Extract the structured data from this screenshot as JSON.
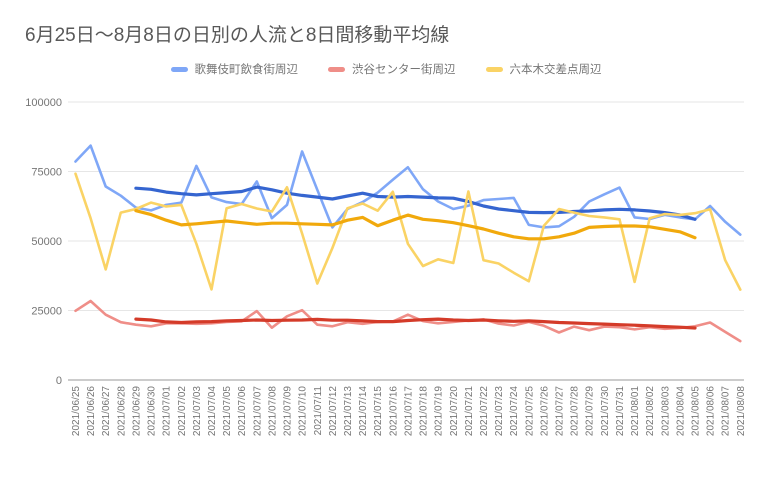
{
  "header": {
    "title": "6月25日〜8月8日の日別の人流と8日間移動平均線"
  },
  "legend": {
    "position": "top",
    "entries": [
      {
        "label": "歌舞伎町飲食街周辺",
        "color": "#7FA7F7"
      },
      {
        "label": "渋谷センター街周辺",
        "color": "#EF8E88"
      },
      {
        "label": "六本木交差点周辺",
        "color": "#FAD365"
      }
    ]
  },
  "chart_data": {
    "type": "line",
    "title": "6月25日〜8月8日の日別の人流と8日間移動平均線",
    "xlabel": "",
    "ylabel": "",
    "ylim": [
      0,
      100000
    ],
    "grid": true,
    "legend_position": "top",
    "y_ticks": [
      0,
      25000,
      50000,
      75000,
      100000
    ],
    "x_dates": [
      "2021/06/25",
      "2021/06/26",
      "2021/06/27",
      "2021/06/28",
      "2021/06/29",
      "2021/06/30",
      "2021/07/01",
      "2021/07/02",
      "2021/07/03",
      "2021/07/04",
      "2021/07/05",
      "2021/07/06",
      "2021/07/07",
      "2021/07/08",
      "2021/07/09",
      "2021/07/10",
      "2021/07/11",
      "2021/07/12",
      "2021/07/13",
      "2021/07/14",
      "2021/07/15",
      "2021/07/16",
      "2021/07/17",
      "2021/07/18",
      "2021/07/19",
      "2021/07/20",
      "2021/07/21",
      "2021/07/22",
      "2021/07/23",
      "2021/07/24",
      "2021/07/25",
      "2021/07/26",
      "2021/07/27",
      "2021/07/28",
      "2021/07/29",
      "2021/07/30",
      "2021/07/31",
      "2021/08/01",
      "2021/08/02",
      "2021/08/03",
      "2021/08/04",
      "2021/08/05",
      "2021/08/06",
      "2021/08/07",
      "2021/08/08"
    ],
    "series": [
      {
        "id": "kabukicho-daily",
        "name": "歌舞伎町飲食街周辺",
        "variant": "daily",
        "color": "#7FA7F7",
        "start_index": 0,
        "values": [
          78600,
          84300,
          69600,
          66300,
          62000,
          61000,
          63000,
          63800,
          77000,
          65700,
          64000,
          63300,
          71400,
          58200,
          63000,
          82200,
          68400,
          54900,
          61500,
          64000,
          67400,
          72000,
          76500,
          68600,
          64200,
          61500,
          62700,
          64700,
          65100,
          65500,
          55800,
          54900,
          55300,
          58700,
          64200,
          66800,
          69200,
          58500,
          57900,
          59400,
          58500,
          57800,
          62600,
          56900,
          52300
        ]
      },
      {
        "id": "kabukicho-ma",
        "name": "歌舞伎町飲食街周辺（8日間移動平均）",
        "variant": "8day_moving_average",
        "color": "#3565D0",
        "start_index": 4,
        "values": [
          69000,
          68600,
          67600,
          67000,
          66600,
          67000,
          67400,
          67800,
          69400,
          68400,
          67200,
          66400,
          65800,
          65100,
          66200,
          67200,
          66000,
          65800,
          66000,
          65800,
          65500,
          65400,
          64200,
          62600,
          61500,
          60900,
          60300,
          60200,
          60300,
          60600,
          60800,
          61200,
          61400,
          61200,
          60800,
          60200,
          59400,
          57800
        ]
      },
      {
        "id": "shibuya-daily",
        "name": "渋谷センター街周辺",
        "variant": "daily",
        "color": "#EF8E88",
        "start_index": 0,
        "values": [
          24900,
          28400,
          23500,
          20800,
          19900,
          19300,
          20400,
          20400,
          20200,
          20400,
          20900,
          21100,
          24800,
          18800,
          22900,
          25100,
          19900,
          19300,
          20800,
          20200,
          20900,
          21000,
          23500,
          21200,
          20400,
          20900,
          21400,
          21800,
          20300,
          19600,
          20900,
          19500,
          17100,
          19200,
          17900,
          19200,
          19000,
          18200,
          19000,
          18400,
          18700,
          19300,
          20700,
          17300,
          14000
        ]
      },
      {
        "id": "shibuya-ma",
        "name": "渋谷センター街周辺（8日間移動平均）",
        "variant": "8day_moving_average",
        "color": "#D43B29",
        "start_index": 4,
        "values": [
          21900,
          21600,
          20900,
          20700,
          20900,
          21000,
          21300,
          21400,
          21600,
          21400,
          21500,
          21600,
          21800,
          21500,
          21500,
          21300,
          21000,
          21000,
          21400,
          21700,
          21900,
          21600,
          21400,
          21600,
          21300,
          21100,
          21300,
          21000,
          20700,
          20500,
          20300,
          20100,
          19900,
          19700,
          19500,
          19200,
          19000,
          18700
        ]
      },
      {
        "id": "roppongi-daily",
        "name": "六本木交差点周辺",
        "variant": "daily",
        "color": "#FAD365",
        "start_index": 0,
        "values": [
          74200,
          58200,
          39800,
          60200,
          61500,
          63800,
          62400,
          63000,
          49000,
          32600,
          61800,
          63300,
          61700,
          60600,
          69300,
          52700,
          34700,
          47500,
          61800,
          63500,
          60900,
          67700,
          49000,
          41000,
          43400,
          42100,
          67800,
          43100,
          41900,
          38600,
          35500,
          55500,
          61500,
          60200,
          59000,
          58500,
          57800,
          35300,
          58200,
          59700,
          59400,
          60000,
          61400,
          43100,
          32500
        ]
      },
      {
        "id": "roppongi-ma",
        "name": "六本木交差点周辺（8日間移動平均）",
        "variant": "8day_moving_average",
        "color": "#F1A90C",
        "start_index": 4,
        "values": [
          60900,
          59500,
          57500,
          55800,
          56200,
          56700,
          57200,
          56600,
          56000,
          56400,
          56400,
          56200,
          56000,
          55800,
          57500,
          58500,
          55500,
          57500,
          59300,
          57800,
          57300,
          56600,
          55500,
          54300,
          52800,
          51500,
          50800,
          50800,
          51500,
          52800,
          54900,
          55200,
          55400,
          55400,
          55100,
          54200,
          53300,
          51200
        ]
      }
    ],
    "colors": {
      "gridline": "#E6E6E6",
      "axis_baseline": "#9A9A9A",
      "axis_label": "#757575",
      "title": "#585858"
    }
  }
}
